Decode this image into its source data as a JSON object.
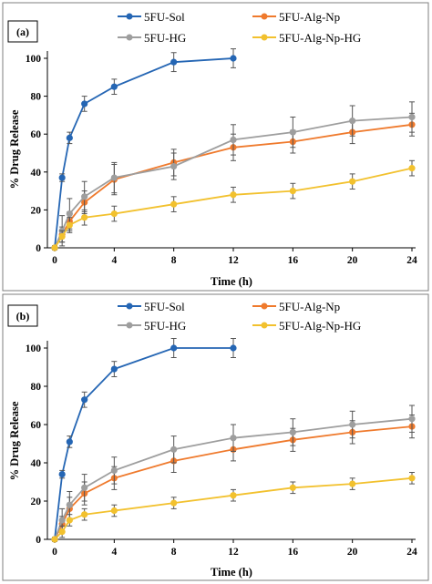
{
  "colors": {
    "5FU-Sol": "#2566b4",
    "5FU-Alg-Np": "#ef7a2d",
    "5FU-HG": "#9e9e9e",
    "5FU-Alg-Np-HG": "#f2c12e"
  },
  "chart_data": [
    {
      "type": "line",
      "panel_label": "(a)",
      "xlabel": "Time (h)",
      "ylabel": "% Drug Release",
      "xlim": [
        0,
        24
      ],
      "ylim": [
        0,
        100
      ],
      "xticks": [
        0,
        4,
        8,
        12,
        16,
        20,
        24
      ],
      "yticks": [
        0,
        20,
        40,
        60,
        80,
        100
      ],
      "legend": "top",
      "series": [
        {
          "name": "5FU-Sol",
          "x": [
            0,
            0.5,
            1,
            2,
            4,
            8,
            12
          ],
          "y": [
            0,
            37,
            58,
            76,
            85,
            98,
            100
          ],
          "err": [
            1,
            2,
            3,
            4,
            4,
            5,
            5
          ]
        },
        {
          "name": "5FU-Alg-Np",
          "x": [
            0,
            0.5,
            1,
            2,
            4,
            8,
            12,
            16,
            20,
            24
          ],
          "y": [
            0,
            7,
            14,
            24,
            36,
            45,
            53,
            56,
            61,
            65
          ],
          "err": [
            1,
            4,
            5,
            6,
            8,
            7,
            7,
            6,
            6,
            6
          ]
        },
        {
          "name": "5FU-HG",
          "x": [
            0,
            0.5,
            1,
            2,
            4,
            8,
            12,
            16,
            20,
            24
          ],
          "y": [
            0,
            9,
            18,
            27,
            37,
            43,
            57,
            61,
            67,
            69
          ],
          "err": [
            1,
            8,
            8,
            8,
            8,
            7,
            8,
            8,
            8,
            8
          ]
        },
        {
          "name": "5FU-Alg-Np-HG",
          "x": [
            0,
            0.5,
            1,
            2,
            4,
            8,
            12,
            16,
            20,
            24
          ],
          "y": [
            0,
            6,
            12,
            16,
            18,
            23,
            28,
            30,
            35,
            42
          ],
          "err": [
            1,
            3,
            4,
            4,
            4,
            4,
            4,
            4,
            4,
            4
          ]
        }
      ]
    },
    {
      "type": "line",
      "panel_label": "(b)",
      "xlabel": "Time (h)",
      "ylabel": "% Drug Release",
      "xlim": [
        0,
        24
      ],
      "ylim": [
        0,
        100
      ],
      "xticks": [
        0,
        4,
        8,
        12,
        16,
        20,
        24
      ],
      "yticks": [
        0,
        20,
        40,
        60,
        80,
        100
      ],
      "legend": "top",
      "series": [
        {
          "name": "5FU-Sol",
          "x": [
            0,
            0.5,
            1,
            2,
            4,
            8,
            12
          ],
          "y": [
            0,
            34,
            51,
            73,
            89,
            100,
            100
          ],
          "err": [
            1,
            2,
            3,
            4,
            4,
            5,
            5
          ]
        },
        {
          "name": "5FU-Alg-Np",
          "x": [
            0,
            0.5,
            1,
            2,
            4,
            8,
            12,
            16,
            20,
            24
          ],
          "y": [
            0,
            8,
            16,
            24,
            32,
            41,
            47,
            52,
            56,
            59
          ],
          "err": [
            1,
            4,
            6,
            6,
            6,
            6,
            6,
            6,
            6,
            6
          ]
        },
        {
          "name": "5FU-HG",
          "x": [
            0,
            0.5,
            1,
            2,
            4,
            8,
            12,
            16,
            20,
            24
          ],
          "y": [
            0,
            10,
            18,
            27,
            36,
            47,
            53,
            56,
            60,
            63
          ],
          "err": [
            1,
            6,
            7,
            7,
            7,
            7,
            7,
            7,
            7,
            7
          ]
        },
        {
          "name": "5FU-Alg-Np-HG",
          "x": [
            0,
            0.5,
            1,
            2,
            4,
            8,
            12,
            16,
            20,
            24
          ],
          "y": [
            0,
            4,
            10,
            13,
            15,
            19,
            23,
            27,
            29,
            32
          ],
          "err": [
            1,
            3,
            3,
            3,
            3,
            3,
            3,
            3,
            3,
            3
          ]
        }
      ]
    }
  ]
}
